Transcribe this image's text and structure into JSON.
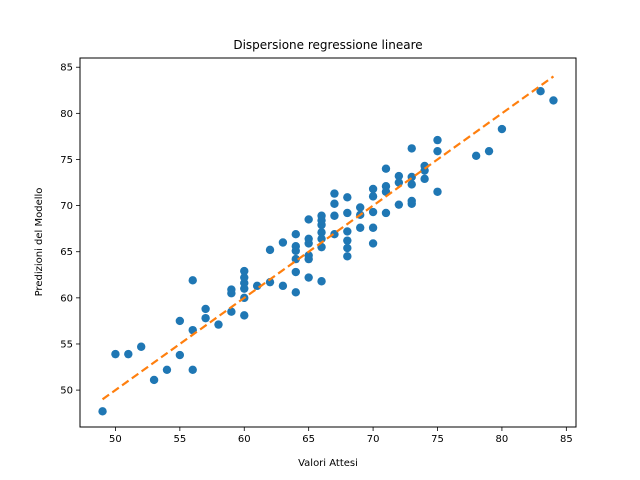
{
  "chart_data": {
    "type": "scatter",
    "title": "Dispersione regressione lineare",
    "xlabel": "Valori Attesi",
    "ylabel": "Predizioni del Modello",
    "xlim": [
      47.25,
      85.75
    ],
    "ylim": [
      46.0,
      86.0
    ],
    "xticks": [
      50,
      55,
      60,
      65,
      70,
      75,
      80,
      85
    ],
    "yticks": [
      50,
      55,
      60,
      65,
      70,
      75,
      80,
      85
    ],
    "grid": false,
    "series": [
      {
        "kind": "scatter",
        "color": "#1f77b4",
        "points": [
          [
            49,
            47.7
          ],
          [
            50,
            53.9
          ],
          [
            51,
            53.9
          ],
          [
            52,
            54.7
          ],
          [
            53,
            51.1
          ],
          [
            54,
            52.2
          ],
          [
            55,
            53.8
          ],
          [
            55,
            57.5
          ],
          [
            56,
            52.2
          ],
          [
            56,
            56.5
          ],
          [
            56,
            61.9
          ],
          [
            57,
            57.8
          ],
          [
            57,
            58.8
          ],
          [
            58,
            57.1
          ],
          [
            59,
            58.5
          ],
          [
            59,
            60.5
          ],
          [
            59,
            60.9
          ],
          [
            60,
            58.1
          ],
          [
            60,
            60.0
          ],
          [
            60,
            61.0
          ],
          [
            60,
            61.6
          ],
          [
            60,
            62.2
          ],
          [
            60,
            62.9
          ],
          [
            61,
            61.3
          ],
          [
            62,
            61.7
          ],
          [
            62,
            65.2
          ],
          [
            63,
            61.3
          ],
          [
            63,
            66.0
          ],
          [
            64,
            60.6
          ],
          [
            64,
            62.8
          ],
          [
            64,
            64.2
          ],
          [
            64,
            65.1
          ],
          [
            64,
            65.6
          ],
          [
            64,
            66.9
          ],
          [
            65,
            62.2
          ],
          [
            65,
            64.2
          ],
          [
            65,
            64.6
          ],
          [
            65,
            65.9
          ],
          [
            65,
            66.4
          ],
          [
            65,
            68.5
          ],
          [
            66,
            61.8
          ],
          [
            66,
            65.5
          ],
          [
            66,
            66.4
          ],
          [
            66,
            67.1
          ],
          [
            66,
            67.9
          ],
          [
            66,
            68.4
          ],
          [
            66,
            68.9
          ],
          [
            67,
            66.9
          ],
          [
            67,
            68.9
          ],
          [
            67,
            70.2
          ],
          [
            67,
            71.3
          ],
          [
            68,
            64.5
          ],
          [
            68,
            65.4
          ],
          [
            68,
            66.2
          ],
          [
            68,
            67.2
          ],
          [
            68,
            69.2
          ],
          [
            68,
            70.9
          ],
          [
            69,
            67.6
          ],
          [
            69,
            69.0
          ],
          [
            69,
            69.8
          ],
          [
            70,
            65.9
          ],
          [
            70,
            67.6
          ],
          [
            70,
            69.3
          ],
          [
            70,
            71.0
          ],
          [
            70,
            71.8
          ],
          [
            71,
            69.2
          ],
          [
            71,
            71.5
          ],
          [
            71,
            72.1
          ],
          [
            71,
            74.0
          ],
          [
            72,
            70.1
          ],
          [
            72,
            72.5
          ],
          [
            72,
            73.2
          ],
          [
            73,
            70.2
          ],
          [
            73,
            70.5
          ],
          [
            73,
            72.3
          ],
          [
            73,
            73.1
          ],
          [
            73,
            76.2
          ],
          [
            74,
            72.9
          ],
          [
            74,
            73.8
          ],
          [
            74,
            74.3
          ],
          [
            75,
            71.5
          ],
          [
            75,
            75.9
          ],
          [
            75,
            77.1
          ],
          [
            78,
            75.4
          ],
          [
            79,
            75.9
          ],
          [
            80,
            78.3
          ],
          [
            83,
            82.4
          ],
          [
            84,
            81.4
          ]
        ]
      },
      {
        "kind": "line",
        "style": "dashed",
        "color": "#ff7f0e",
        "points": [
          [
            49,
            49
          ],
          [
            84,
            84
          ]
        ]
      }
    ]
  }
}
